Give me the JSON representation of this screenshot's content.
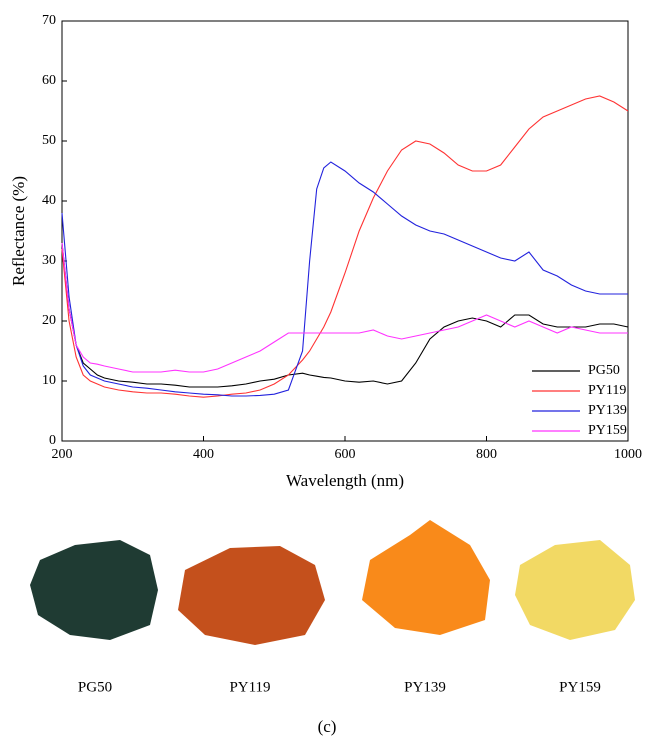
{
  "chart_data": {
    "type": "line",
    "x_label": "Wavelength (nm)",
    "y_label": "Reflectance (%)",
    "x": [
      200,
      210,
      220,
      230,
      240,
      250,
      260,
      280,
      300,
      320,
      340,
      360,
      380,
      400,
      420,
      440,
      460,
      480,
      500,
      520,
      540,
      550,
      560,
      570,
      580,
      600,
      620,
      640,
      660,
      680,
      700,
      720,
      740,
      760,
      780,
      800,
      820,
      840,
      860,
      880,
      900,
      920,
      940,
      960,
      980,
      1000
    ],
    "series": [
      {
        "name": "PG50",
        "color": "#000000",
        "values": [
          33,
          22,
          16,
          13,
          12,
          11,
          10.5,
          10,
          9.8,
          9.5,
          9.5,
          9.3,
          9,
          9,
          9,
          9.2,
          9.5,
          10,
          10.3,
          11,
          11.3,
          11,
          10.8,
          10.6,
          10.5,
          10,
          9.8,
          10,
          9.5,
          10,
          13,
          17,
          19,
          20,
          20.5,
          20,
          19,
          21,
          21,
          19.5,
          19,
          19,
          19,
          19.5,
          19.5,
          19
        ]
      },
      {
        "name": "PY119",
        "color": "#ff3333",
        "values": [
          32,
          20,
          14,
          11,
          10,
          9.5,
          9,
          8.5,
          8.2,
          8,
          8,
          7.8,
          7.5,
          7.3,
          7.5,
          7.8,
          8,
          8.5,
          9.5,
          11,
          13.5,
          15,
          17,
          19,
          21.5,
          28,
          35,
          40.5,
          45,
          48.5,
          50,
          49.5,
          48,
          46,
          45,
          45,
          46,
          49,
          52,
          54,
          55,
          56,
          57,
          57.5,
          56.5,
          55
        ]
      },
      {
        "name": "PY139",
        "color": "#2222dd",
        "values": [
          38,
          24,
          16,
          12.5,
          11,
          10.5,
          10,
          9.5,
          9,
          8.8,
          8.5,
          8.2,
          8,
          7.8,
          7.7,
          7.5,
          7.5,
          7.6,
          7.8,
          8.5,
          15,
          30,
          42,
          45.5,
          46.5,
          45,
          43,
          41.5,
          39.5,
          37.5,
          36,
          35,
          34.5,
          33.5,
          32.5,
          31.5,
          30.5,
          30,
          31.5,
          28.5,
          27.5,
          26,
          25,
          24.5,
          24.5,
          24.5
        ]
      },
      {
        "name": "PY159",
        "color": "#ff33ff",
        "values": [
          33,
          22,
          16,
          14,
          13,
          12.8,
          12.5,
          12,
          11.5,
          11.5,
          11.5,
          11.8,
          11.5,
          11.5,
          12,
          13,
          14,
          15,
          16.5,
          18,
          18,
          18,
          18,
          18,
          18,
          18,
          18,
          18.5,
          17.5,
          17,
          17.5,
          18,
          18.5,
          19,
          20,
          21,
          20,
          19,
          20,
          19,
          18,
          19,
          18.5,
          18,
          18,
          18
        ]
      }
    ],
    "xlim": [
      200,
      1000
    ],
    "xticks": [
      200,
      400,
      600,
      800,
      1000
    ],
    "ylim": [
      0,
      70
    ],
    "yticks": [
      0,
      10,
      20,
      30,
      40,
      50,
      60,
      70
    ],
    "legend": "lower right"
  },
  "pigment_labels": [
    "PG50",
    "PY119",
    "PY139",
    "PY159"
  ],
  "panel_label": "(c)"
}
